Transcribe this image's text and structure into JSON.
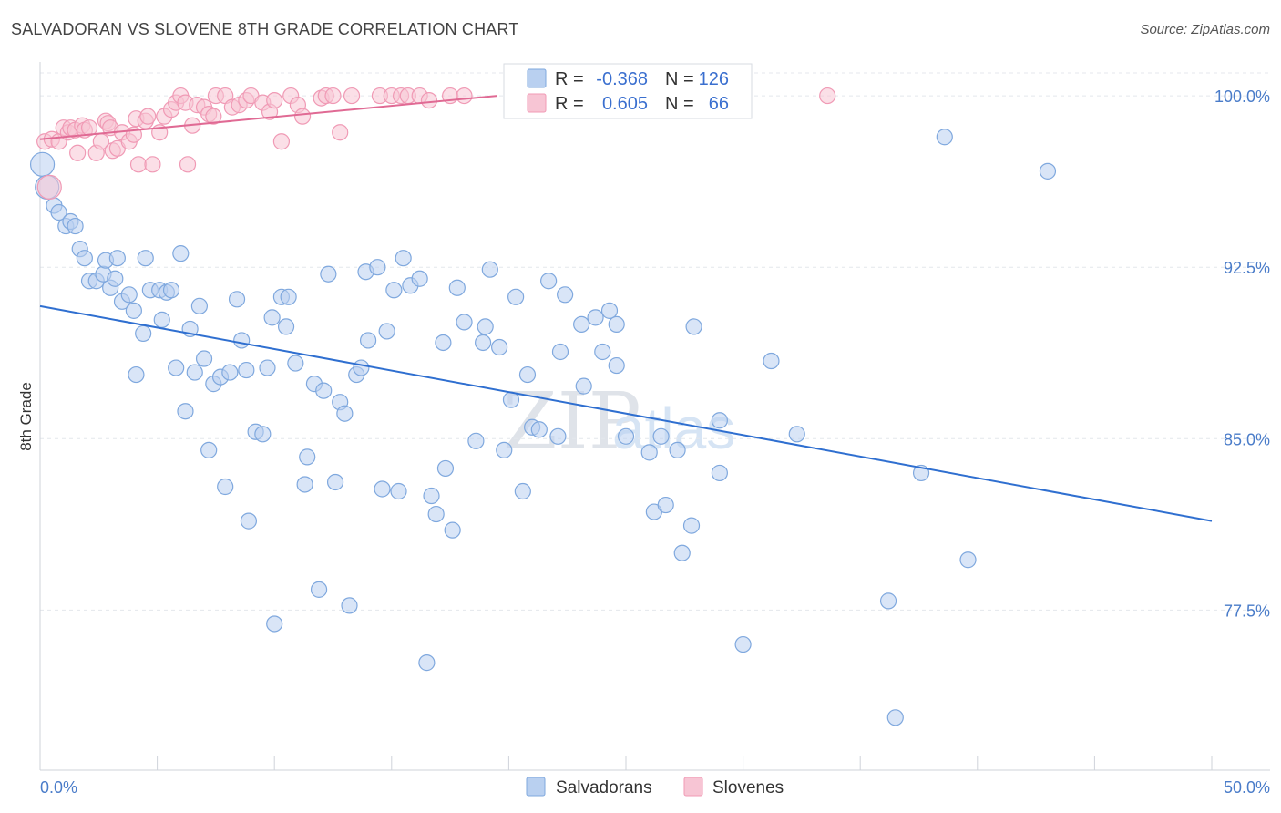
{
  "title": "SALVADORAN VS SLOVENE 8TH GRADE CORRELATION CHART",
  "source": "Source: ZipAtlas.com",
  "watermark": {
    "part1": "ZIP",
    "part2": "atlas"
  },
  "chart_data": {
    "type": "scatter",
    "title": "SALVADORAN VS SLOVENE 8TH GRADE CORRELATION CHART",
    "xlabel": "",
    "ylabel": "8th Grade",
    "xlim": [
      0,
      50
    ],
    "ylim": [
      70.5,
      101
    ],
    "x_tick_labels": [
      "0.0%",
      "50.0%"
    ],
    "y_ticks": [
      100.0,
      92.5,
      85.0,
      77.5
    ],
    "y_tick_labels": [
      "100.0%",
      "92.5%",
      "85.0%",
      "77.5%"
    ],
    "grid": true,
    "legend": {
      "position": "top-center",
      "rows": [
        {
          "r_label": "R =",
          "r_value": "-0.368",
          "n_label": "N =",
          "n_value": "126"
        },
        {
          "r_label": "R =",
          "r_value": "0.605",
          "n_label": "N =",
          "n_value": "66"
        }
      ]
    },
    "series": [
      {
        "name": "Salvadorans",
        "color": "#7fa8de",
        "fill": "#b9d0f0",
        "line_color": "#2f6fd0",
        "trend": {
          "x": [
            0,
            50
          ],
          "y": [
            90.8,
            81.4
          ]
        },
        "points": [
          [
            0.1,
            97.0
          ],
          [
            0.3,
            96.0
          ],
          [
            0.6,
            95.2
          ],
          [
            0.8,
            94.9
          ],
          [
            1.1,
            94.3
          ],
          [
            1.3,
            94.5
          ],
          [
            1.5,
            94.3
          ],
          [
            1.7,
            93.3
          ],
          [
            1.9,
            92.9
          ],
          [
            2.1,
            91.9
          ],
          [
            2.4,
            91.9
          ],
          [
            2.7,
            92.2
          ],
          [
            2.8,
            92.8
          ],
          [
            3.0,
            91.6
          ],
          [
            3.2,
            92.0
          ],
          [
            3.3,
            92.9
          ],
          [
            3.5,
            91.0
          ],
          [
            3.8,
            91.3
          ],
          [
            4.0,
            90.6
          ],
          [
            4.1,
            87.8
          ],
          [
            4.5,
            92.9
          ],
          [
            4.4,
            89.6
          ],
          [
            4.7,
            91.5
          ],
          [
            5.1,
            91.5
          ],
          [
            5.2,
            90.2
          ],
          [
            5.4,
            91.4
          ],
          [
            5.6,
            91.5
          ],
          [
            5.8,
            88.1
          ],
          [
            6.0,
            93.1
          ],
          [
            6.2,
            86.2
          ],
          [
            6.4,
            89.8
          ],
          [
            6.6,
            87.9
          ],
          [
            6.8,
            90.8
          ],
          [
            7.0,
            88.5
          ],
          [
            7.2,
            84.5
          ],
          [
            7.4,
            87.4
          ],
          [
            7.7,
            87.7
          ],
          [
            7.9,
            82.9
          ],
          [
            8.1,
            87.9
          ],
          [
            8.4,
            91.1
          ],
          [
            8.6,
            89.3
          ],
          [
            8.8,
            88.0
          ],
          [
            8.9,
            81.4
          ],
          [
            9.2,
            85.3
          ],
          [
            9.5,
            85.2
          ],
          [
            9.7,
            88.1
          ],
          [
            9.9,
            90.3
          ],
          [
            10.0,
            76.9
          ],
          [
            10.3,
            91.2
          ],
          [
            10.5,
            89.9
          ],
          [
            10.6,
            91.2
          ],
          [
            10.9,
            88.3
          ],
          [
            11.3,
            83.0
          ],
          [
            11.4,
            84.2
          ],
          [
            11.7,
            87.4
          ],
          [
            11.9,
            78.4
          ],
          [
            12.1,
            87.1
          ],
          [
            12.3,
            92.2
          ],
          [
            12.6,
            83.1
          ],
          [
            12.8,
            86.6
          ],
          [
            13.0,
            86.1
          ],
          [
            13.2,
            77.7
          ],
          [
            13.5,
            87.8
          ],
          [
            13.7,
            88.1
          ],
          [
            13.9,
            92.3
          ],
          [
            14.0,
            89.3
          ],
          [
            14.4,
            92.5
          ],
          [
            14.6,
            82.8
          ],
          [
            14.8,
            89.7
          ],
          [
            15.1,
            91.5
          ],
          [
            15.3,
            82.7
          ],
          [
            15.5,
            92.9
          ],
          [
            15.8,
            91.7
          ],
          [
            16.2,
            92.0
          ],
          [
            16.5,
            75.2
          ],
          [
            16.7,
            82.5
          ],
          [
            16.9,
            81.7
          ],
          [
            17.2,
            89.2
          ],
          [
            17.3,
            83.7
          ],
          [
            17.6,
            81.0
          ],
          [
            17.8,
            91.6
          ],
          [
            18.1,
            90.1
          ],
          [
            18.6,
            84.9
          ],
          [
            18.9,
            89.2
          ],
          [
            19.0,
            89.9
          ],
          [
            19.2,
            92.4
          ],
          [
            19.6,
            89.0
          ],
          [
            19.8,
            84.5
          ],
          [
            20.1,
            86.7
          ],
          [
            20.3,
            91.2
          ],
          [
            20.6,
            82.7
          ],
          [
            20.8,
            87.8
          ],
          [
            21.0,
            85.5
          ],
          [
            21.3,
            85.4
          ],
          [
            21.7,
            91.9
          ],
          [
            22.1,
            85.1
          ],
          [
            22.2,
            88.8
          ],
          [
            22.4,
            91.3
          ],
          [
            23.1,
            90.0
          ],
          [
            23.2,
            87.3
          ],
          [
            23.7,
            90.3
          ],
          [
            24.0,
            88.8
          ],
          [
            24.3,
            90.6
          ],
          [
            24.6,
            90.0
          ],
          [
            24.6,
            88.2
          ],
          [
            25.0,
            85.1
          ],
          [
            26.0,
            84.4
          ],
          [
            26.2,
            81.8
          ],
          [
            26.5,
            85.1
          ],
          [
            26.7,
            82.1
          ],
          [
            27.2,
            84.5
          ],
          [
            27.4,
            80.0
          ],
          [
            27.8,
            81.2
          ],
          [
            27.9,
            89.9
          ],
          [
            29.0,
            83.5
          ],
          [
            29.0,
            85.8
          ],
          [
            30.0,
            76.0
          ],
          [
            31.2,
            88.4
          ],
          [
            32.3,
            85.2
          ],
          [
            36.2,
            77.9
          ],
          [
            37.6,
            83.5
          ],
          [
            38.6,
            98.2
          ],
          [
            39.6,
            79.7
          ],
          [
            43.0,
            96.7
          ],
          [
            36.5,
            72.8
          ]
        ]
      },
      {
        "name": "Slovenes",
        "color": "#f09ab5",
        "fill": "#f7c5d4",
        "line_color": "#e06a94",
        "trend": {
          "x": [
            0,
            19.5
          ],
          "y": [
            98.1,
            100.0
          ]
        },
        "points": [
          [
            0.2,
            98.0
          ],
          [
            0.4,
            96.0
          ],
          [
            0.5,
            98.1
          ],
          [
            0.8,
            98.0
          ],
          [
            1.0,
            98.6
          ],
          [
            1.2,
            98.4
          ],
          [
            1.3,
            98.6
          ],
          [
            1.5,
            98.5
          ],
          [
            1.6,
            97.5
          ],
          [
            1.8,
            98.7
          ],
          [
            1.9,
            98.5
          ],
          [
            2.1,
            98.6
          ],
          [
            2.4,
            97.5
          ],
          [
            2.6,
            98.0
          ],
          [
            2.8,
            98.9
          ],
          [
            2.9,
            98.8
          ],
          [
            3.0,
            98.6
          ],
          [
            3.1,
            97.6
          ],
          [
            3.3,
            97.7
          ],
          [
            3.5,
            98.4
          ],
          [
            3.8,
            98.0
          ],
          [
            4.0,
            98.3
          ],
          [
            4.1,
            99.0
          ],
          [
            4.2,
            97.0
          ],
          [
            4.5,
            98.9
          ],
          [
            4.6,
            99.1
          ],
          [
            4.8,
            97.0
          ],
          [
            5.1,
            98.4
          ],
          [
            5.3,
            99.1
          ],
          [
            5.6,
            99.4
          ],
          [
            5.8,
            99.7
          ],
          [
            6.0,
            100.0
          ],
          [
            6.2,
            99.7
          ],
          [
            6.3,
            97.0
          ],
          [
            6.5,
            98.7
          ],
          [
            6.7,
            99.6
          ],
          [
            7.0,
            99.5
          ],
          [
            7.2,
            99.2
          ],
          [
            7.4,
            99.1
          ],
          [
            7.5,
            100.0
          ],
          [
            7.9,
            100.0
          ],
          [
            8.2,
            99.5
          ],
          [
            8.5,
            99.6
          ],
          [
            8.8,
            99.8
          ],
          [
            9.0,
            100.0
          ],
          [
            9.5,
            99.7
          ],
          [
            9.8,
            99.3
          ],
          [
            10.0,
            99.8
          ],
          [
            10.3,
            98.0
          ],
          [
            10.7,
            100.0
          ],
          [
            11.0,
            99.6
          ],
          [
            11.2,
            99.1
          ],
          [
            12.0,
            99.9
          ],
          [
            12.2,
            100.0
          ],
          [
            12.5,
            100.0
          ],
          [
            12.8,
            98.4
          ],
          [
            13.3,
            100.0
          ],
          [
            14.5,
            100.0
          ],
          [
            15.0,
            100.0
          ],
          [
            15.4,
            100.0
          ],
          [
            15.7,
            100.0
          ],
          [
            16.2,
            100.0
          ],
          [
            16.6,
            99.8
          ],
          [
            17.5,
            100.0
          ],
          [
            18.1,
            100.0
          ],
          [
            33.6,
            100.0
          ]
        ]
      }
    ]
  }
}
